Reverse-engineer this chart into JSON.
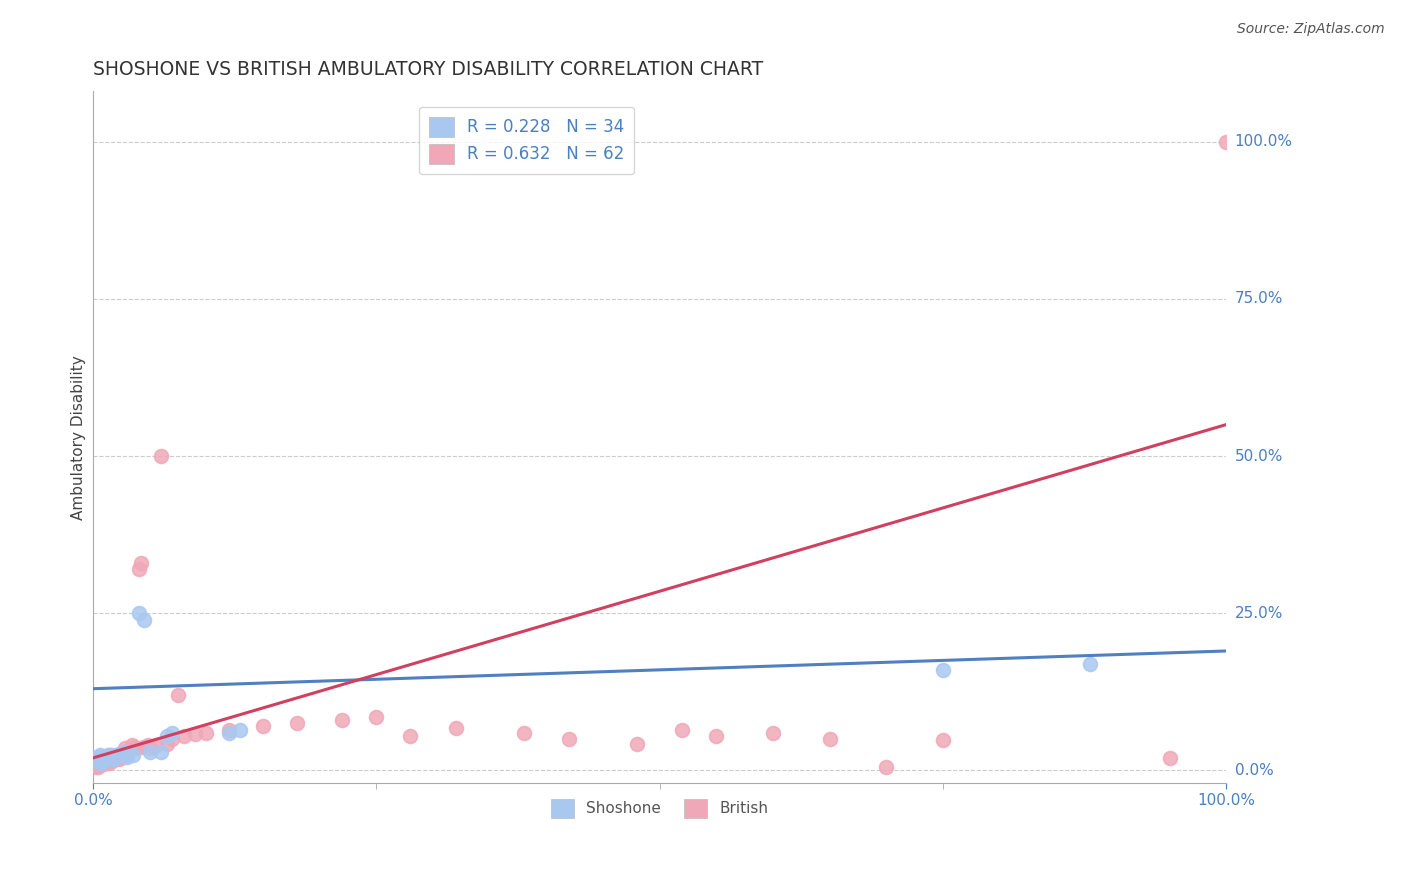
{
  "title": "SHOSHONE VS BRITISH AMBULATORY DISABILITY CORRELATION CHART",
  "source_text": "Source: ZipAtlas.com",
  "ylabel": "Ambulatory Disability",
  "right_ytick_labels": [
    "0.0%",
    "25.0%",
    "50.0%",
    "75.0%",
    "100.0%"
  ],
  "right_ytick_values": [
    0.0,
    0.25,
    0.5,
    0.75,
    1.0
  ],
  "xlim": [
    0.0,
    1.0
  ],
  "ylim": [
    -0.02,
    1.08
  ],
  "shoshone_R": 0.228,
  "shoshone_N": 34,
  "british_R": 0.632,
  "british_N": 62,
  "shoshone_color": "#a8c8f0",
  "british_color": "#f0a8b8",
  "shoshone_line_color": "#5080c0",
  "british_line_color": "#d04060",
  "legend_text_color": "#4a7fc0",
  "title_color": "#333333",
  "grid_color": "#cccccc",
  "background_color": "#ffffff",
  "shoshone_x": [
    0.002,
    0.003,
    0.004,
    0.005,
    0.006,
    0.007,
    0.008,
    0.009,
    0.01,
    0.011,
    0.012,
    0.013,
    0.014,
    0.015,
    0.016,
    0.017,
    0.018,
    0.019,
    0.02,
    0.022,
    0.025,
    0.028,
    0.03,
    0.035,
    0.04,
    0.045,
    0.05,
    0.06,
    0.065,
    0.07,
    0.12,
    0.13,
    0.75,
    0.88
  ],
  "shoshone_y": [
    0.02,
    0.015,
    0.018,
    0.022,
    0.025,
    0.012,
    0.015,
    0.018,
    0.02,
    0.022,
    0.018,
    0.025,
    0.02,
    0.022,
    0.025,
    0.02,
    0.018,
    0.022,
    0.025,
    0.025,
    0.028,
    0.03,
    0.022,
    0.025,
    0.25,
    0.24,
    0.03,
    0.03,
    0.055,
    0.06,
    0.06,
    0.065,
    0.16,
    0.17
  ],
  "british_x": [
    0.002,
    0.003,
    0.004,
    0.005,
    0.006,
    0.007,
    0.008,
    0.009,
    0.01,
    0.011,
    0.012,
    0.013,
    0.014,
    0.015,
    0.016,
    0.017,
    0.018,
    0.019,
    0.02,
    0.021,
    0.022,
    0.023,
    0.024,
    0.025,
    0.026,
    0.028,
    0.03,
    0.032,
    0.034,
    0.036,
    0.038,
    0.04,
    0.042,
    0.044,
    0.048,
    0.05,
    0.055,
    0.06,
    0.065,
    0.07,
    0.075,
    0.08,
    0.09,
    0.1,
    0.12,
    0.15,
    0.18,
    0.22,
    0.25,
    0.28,
    0.32,
    0.38,
    0.42,
    0.48,
    0.52,
    0.55,
    0.6,
    0.65,
    0.7,
    0.75,
    0.95,
    1.0
  ],
  "british_y": [
    0.005,
    0.008,
    0.006,
    0.01,
    0.008,
    0.012,
    0.015,
    0.01,
    0.018,
    0.012,
    0.02,
    0.015,
    0.012,
    0.025,
    0.018,
    0.015,
    0.022,
    0.018,
    0.025,
    0.02,
    0.022,
    0.018,
    0.025,
    0.028,
    0.022,
    0.035,
    0.03,
    0.032,
    0.04,
    0.038,
    0.035,
    0.32,
    0.33,
    0.038,
    0.04,
    0.035,
    0.04,
    0.5,
    0.042,
    0.05,
    0.12,
    0.055,
    0.058,
    0.06,
    0.065,
    0.07,
    0.075,
    0.08,
    0.085,
    0.055,
    0.068,
    0.06,
    0.05,
    0.042,
    0.065,
    0.055,
    0.06,
    0.05,
    0.005,
    0.048,
    0.02,
    1.0
  ],
  "shoshone_line": [
    0.0,
    1.0,
    0.13,
    0.19
  ],
  "british_line": [
    0.0,
    1.0,
    0.02,
    0.55
  ]
}
